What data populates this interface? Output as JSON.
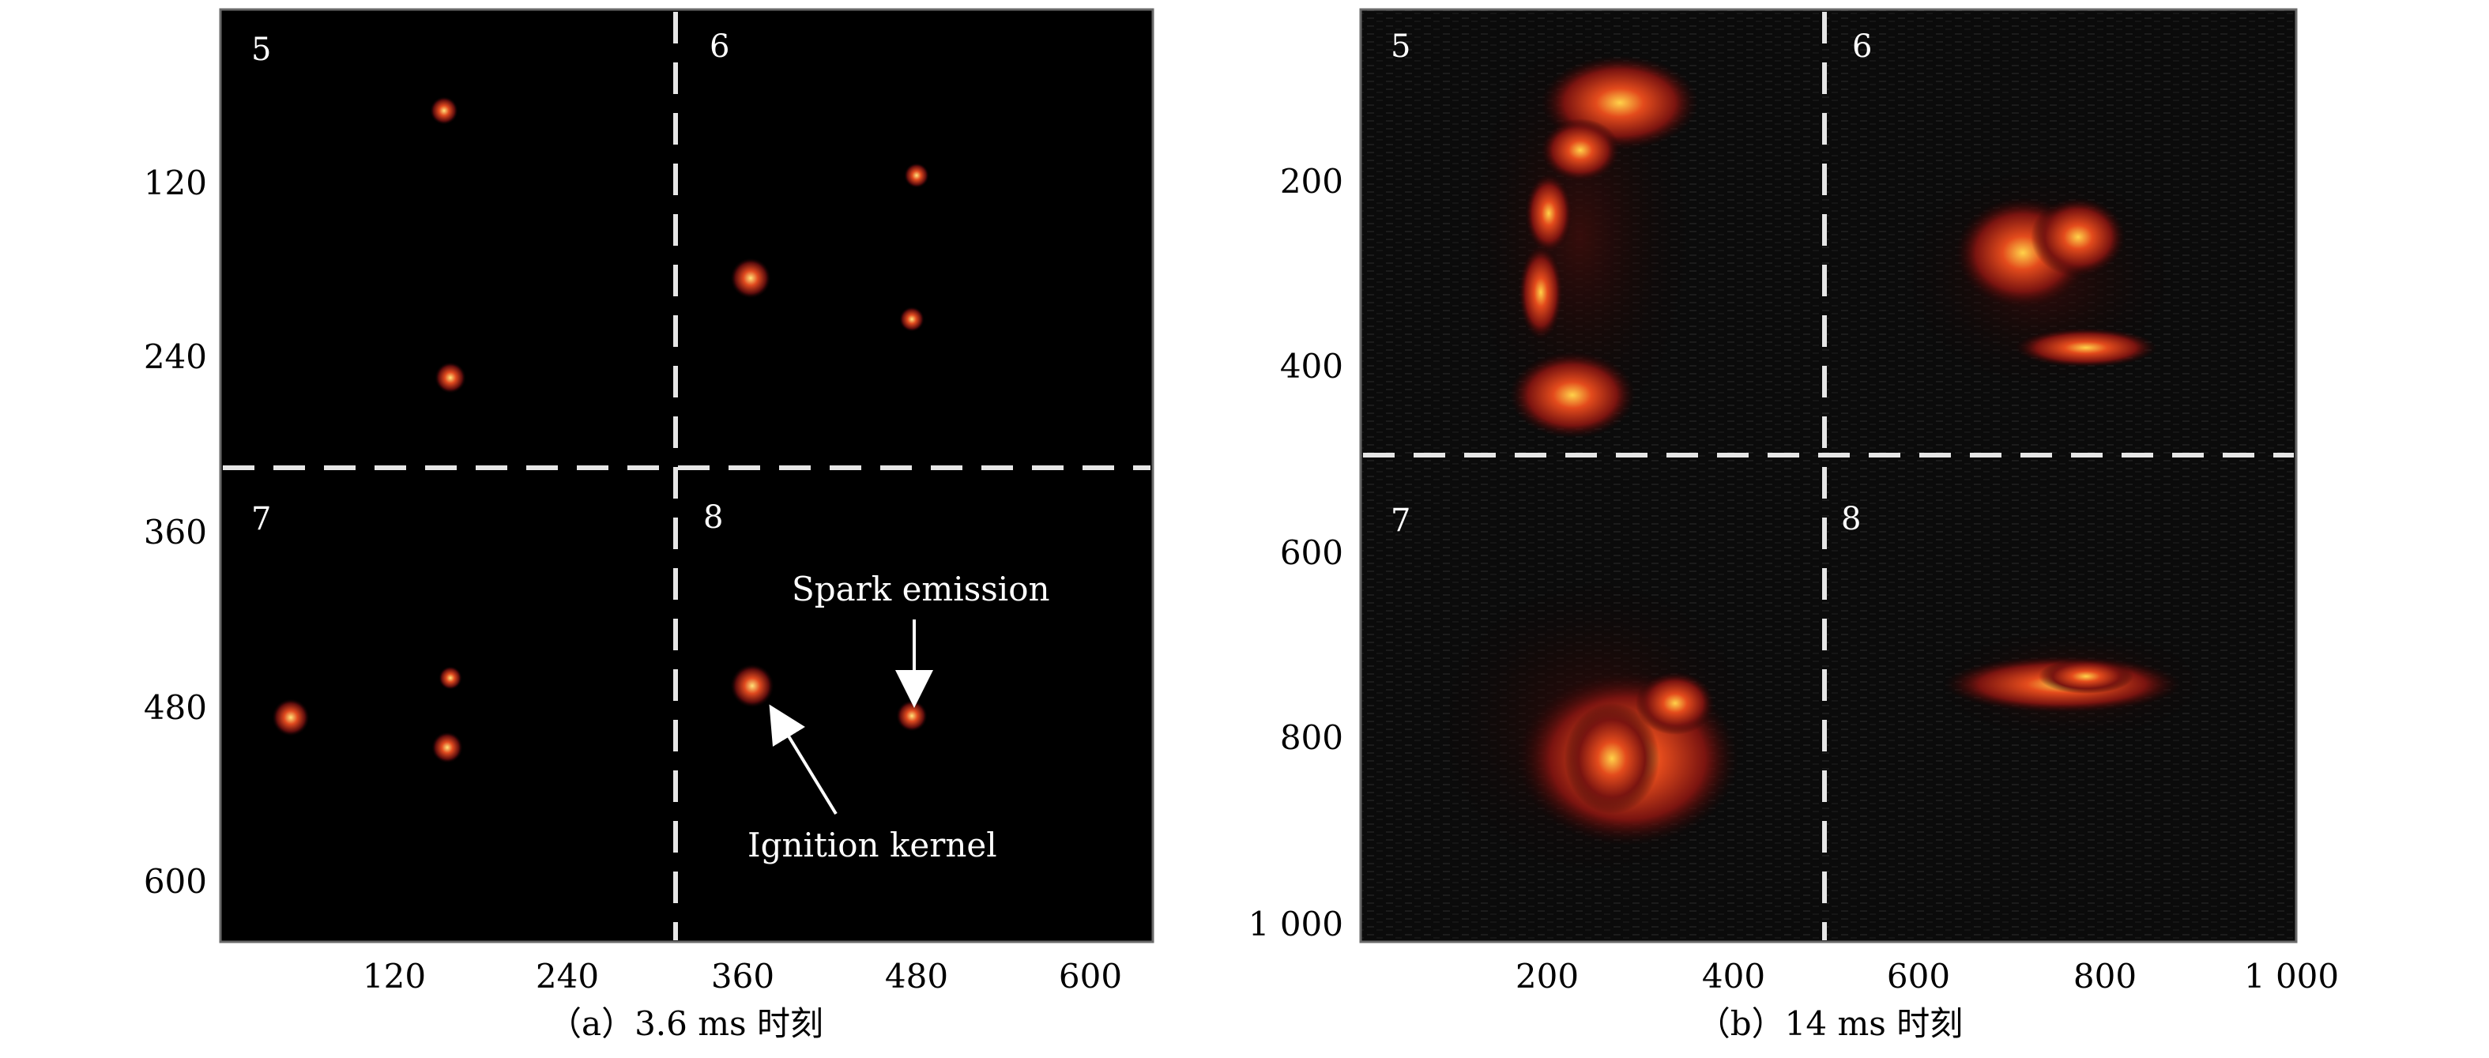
{
  "panel_a": {
    "caption": "（a）3.6 ms 时刻",
    "y_ticks": [
      "120",
      "240",
      "360",
      "480",
      "600"
    ],
    "x_ticks": [
      "120",
      "240",
      "360",
      "480",
      "600"
    ],
    "quadrants": [
      "5",
      "6",
      "7",
      "8"
    ],
    "annotations": {
      "spark": "Spark emission",
      "kernel": "Ignition kernel"
    }
  },
  "panel_b": {
    "caption": "（b）14 ms 时刻",
    "y_ticks": [
      "200",
      "400",
      "600",
      "800",
      "1 000"
    ],
    "x_ticks": [
      "200",
      "400",
      "600",
      "800",
      "1 000"
    ],
    "quadrants": [
      "5",
      "6",
      "7",
      "8"
    ]
  },
  "colors": {
    "background": "#000000",
    "dashed_lines": "#e6e6e6",
    "flame_low": "#6a0d0d",
    "flame_mid": "#d23a1a",
    "flame_high": "#ffd24a"
  }
}
